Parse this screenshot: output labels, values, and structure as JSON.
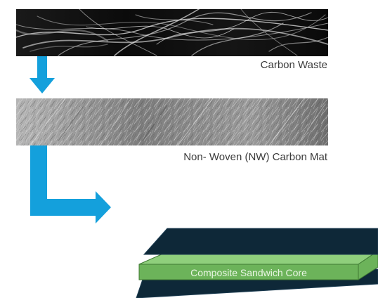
{
  "steps": [
    {
      "label": "Carbon Waste",
      "image": "carbon-waste-photo"
    },
    {
      "label": "Non- Woven (NW) Carbon Mat",
      "image": "nonwoven-carbon-mat-photo"
    }
  ],
  "core_label": "Composite Sandwich Core",
  "colors": {
    "arrow": "#14a0dc",
    "skin": "#0e2838",
    "skin_edge": "#1d3d52",
    "core_top": "#8fcf7c",
    "core_front": "#6cb35a",
    "core_edge": "#3f7a33",
    "core_label": "#e9f6e3",
    "caption": "#3a3a3a"
  }
}
